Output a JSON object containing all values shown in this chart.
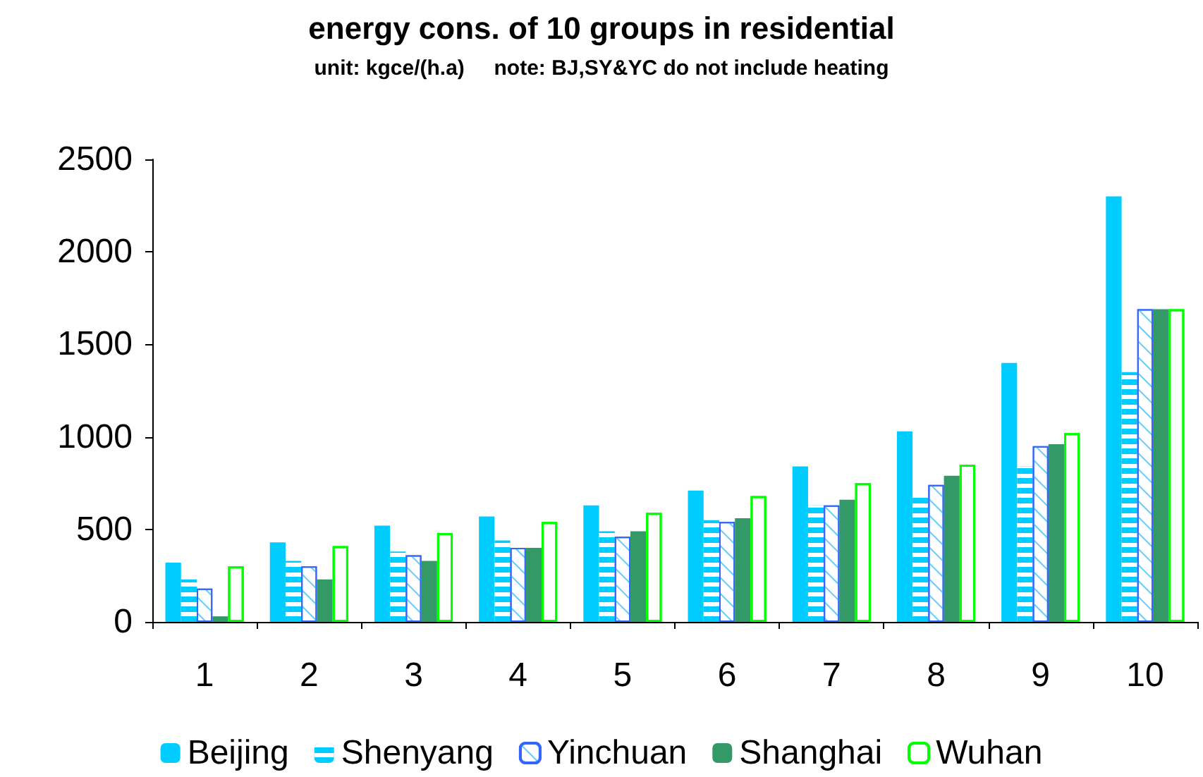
{
  "chart_data": {
    "type": "bar",
    "title": "energy cons. of 10 groups in residential",
    "subtitle": "unit: kgce/(h.a)     note: BJ,SY&YC do not include heating",
    "categories": [
      "1",
      "2",
      "3",
      "4",
      "5",
      "6",
      "7",
      "8",
      "9",
      "10"
    ],
    "series": [
      {
        "name": "Beijing",
        "color": "#00ccff",
        "values": [
          320,
          430,
          520,
          570,
          630,
          710,
          840,
          1030,
          1400,
          2300
        ]
      },
      {
        "name": "Shenyang",
        "color": "#00ccff",
        "values": [
          230,
          330,
          380,
          440,
          490,
          550,
          630,
          690,
          840,
          1350
        ]
      },
      {
        "name": "Yinchuan",
        "color": "#3366ff",
        "values": [
          180,
          300,
          360,
          400,
          460,
          540,
          630,
          740,
          950,
          1690
        ]
      },
      {
        "name": "Shanghai",
        "color": "#339966",
        "values": [
          30,
          230,
          330,
          400,
          490,
          560,
          660,
          790,
          960,
          1690
        ]
      },
      {
        "name": "Wuhan",
        "color": "#00ff00",
        "values": [
          300,
          410,
          480,
          540,
          590,
          680,
          750,
          850,
          1020,
          1690
        ]
      }
    ],
    "ylim": [
      0,
      2500
    ],
    "yticks": [
      0,
      500,
      1000,
      1500,
      2000,
      2500
    ],
    "grid": false,
    "legend": "bottom"
  }
}
